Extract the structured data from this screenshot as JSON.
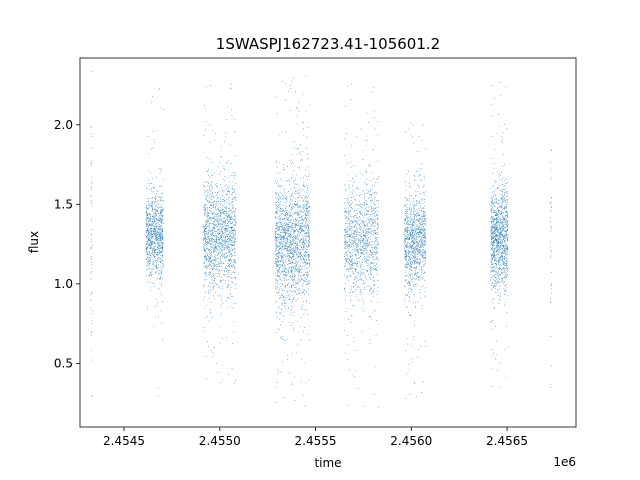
{
  "chart_data": {
    "type": "scatter",
    "title": "1SWASPJ162723.41-105601.2",
    "xlabel": "time",
    "ylabel": "flux",
    "x_offset_label": "1e6",
    "xlim": [
      2.45427,
      2.45686
    ],
    "ylim": [
      0.1,
      2.42
    ],
    "x_ticks": [
      2.4545,
      2.455,
      2.4555,
      2.456,
      2.4565
    ],
    "x_tick_labels": [
      "2.4545",
      "2.4550",
      "2.4555",
      "2.4560",
      "2.4565"
    ],
    "y_ticks": [
      0.5,
      1.0,
      1.5,
      2.0
    ],
    "y_tick_labels": [
      "0.5",
      "1.0",
      "1.5",
      "2.0"
    ],
    "grid": false,
    "marker_color": "#1f77b4",
    "clusters": [
      {
        "x_center": 2.45433,
        "x_width": 8e-06,
        "flux_center": 1.3,
        "flux_spread": 0.45,
        "flux_min": 0.25,
        "flux_max": 2.34,
        "points": 60
      },
      {
        "x_center": 2.45466,
        "x_width": 9e-05,
        "flux_center": 1.3,
        "flux_spread": 0.13,
        "flux_min": 0.22,
        "flux_max": 2.28,
        "points": 900
      },
      {
        "x_center": 2.455,
        "x_width": 0.00017,
        "flux_center": 1.3,
        "flux_spread": 0.17,
        "flux_min": 0.37,
        "flux_max": 2.29,
        "points": 1400
      },
      {
        "x_center": 2.45538,
        "x_width": 0.00018,
        "flux_center": 1.27,
        "flux_spread": 0.2,
        "flux_min": 0.22,
        "flux_max": 2.33,
        "points": 1700
      },
      {
        "x_center": 2.45574,
        "x_width": 0.00018,
        "flux_center": 1.28,
        "flux_spread": 0.17,
        "flux_min": 0.2,
        "flux_max": 2.3,
        "points": 1100
      },
      {
        "x_center": 2.45602,
        "x_width": 0.00011,
        "flux_center": 1.27,
        "flux_spread": 0.15,
        "flux_min": 0.25,
        "flux_max": 2.02,
        "points": 1000
      },
      {
        "x_center": 2.45646,
        "x_width": 9e-05,
        "flux_center": 1.3,
        "flux_spread": 0.16,
        "flux_min": 0.32,
        "flux_max": 2.3,
        "points": 1100
      },
      {
        "x_center": 2.45673,
        "x_width": 8e-06,
        "flux_center": 1.2,
        "flux_spread": 0.3,
        "flux_min": 0.34,
        "flux_max": 1.88,
        "points": 40
      }
    ]
  }
}
